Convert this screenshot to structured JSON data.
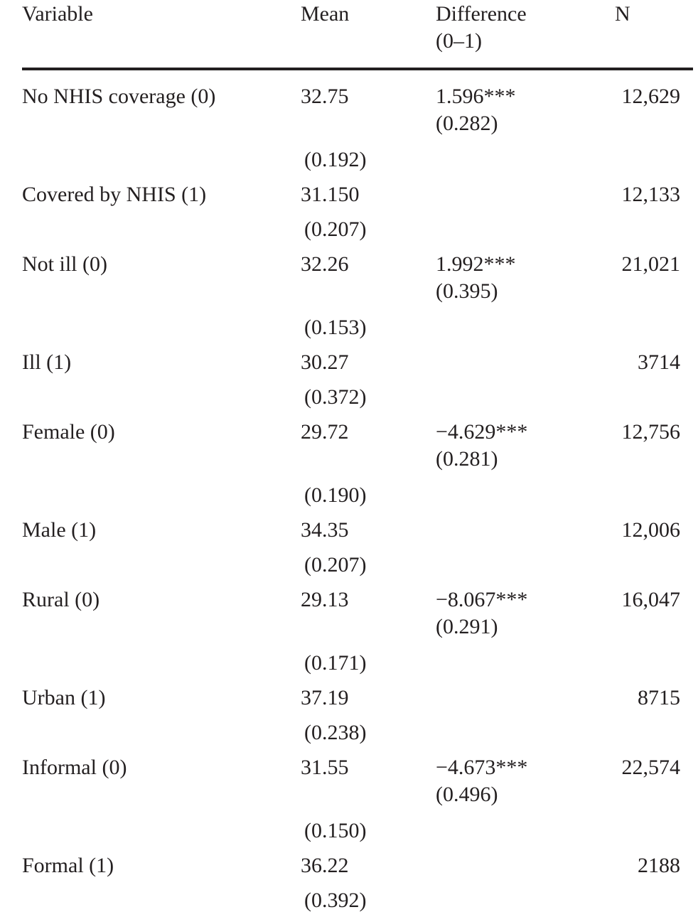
{
  "table": {
    "header": {
      "variable": "Variable",
      "mean": "Mean",
      "difference": [
        "Difference",
        "(0–1)"
      ],
      "n": "N"
    },
    "rows": [
      {
        "variable": "No NHIS coverage (0)",
        "mean": "32.75",
        "mean_se": "(0.192)",
        "difference": "1.596***",
        "difference_se": "(0.282)",
        "n": "12,629"
      },
      {
        "variable": "Covered by NHIS (1)",
        "mean": "31.150",
        "mean_se": "(0.207)",
        "n": "12,133"
      },
      {
        "variable": "Not ill (0)",
        "mean": "32.26",
        "mean_se": "(0.153)",
        "difference": "1.992***",
        "difference_se": "(0.395)",
        "n": "21,021"
      },
      {
        "variable": "Ill (1)",
        "mean": "30.27",
        "mean_se": "(0.372)",
        "n": "3714"
      },
      {
        "variable": "Female (0)",
        "mean": "29.72",
        "mean_se": "(0.190)",
        "difference": "−4.629***",
        "difference_se": "(0.281)",
        "n": "12,756"
      },
      {
        "variable": "Male (1)",
        "mean": "34.35",
        "mean_se": "(0.207)",
        "n": "12,006"
      },
      {
        "variable": "Rural (0)",
        "mean": "29.13",
        "mean_se": "(0.171)",
        "difference": "−8.067***",
        "difference_se": "(0.291)",
        "n": "16,047"
      },
      {
        "variable": "Urban (1)",
        "mean": "37.19",
        "mean_se": "(0.238)",
        "n": "8715"
      },
      {
        "variable": "Informal (0)",
        "mean": "31.55",
        "mean_se": "(0.150)",
        "difference": "−4.673***",
        "difference_se": "(0.496)",
        "n": "22,574"
      },
      {
        "variable": "Formal (1)",
        "mean": "36.22",
        "mean_se": "(0.392)",
        "n": "2188"
      }
    ]
  }
}
